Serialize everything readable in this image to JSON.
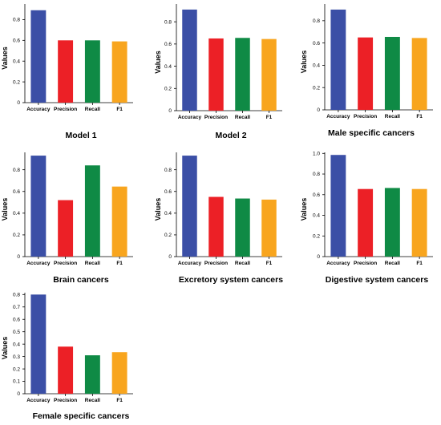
{
  "colors": {
    "Accuracy": "#3b4fa6",
    "Precision": "#ec2026",
    "Recall": "#0f8a45",
    "F1": "#f8a51e"
  },
  "chart_data": [
    {
      "type": "bar",
      "title": "Model 1",
      "ylabel": "Values",
      "categories": [
        "Accuracy",
        "Precision",
        "Recall",
        "F1"
      ],
      "values": [
        0.89,
        0.6,
        0.6,
        0.59
      ],
      "yticks": [
        "0",
        "0.2",
        "0.4",
        "0.6",
        "0.8"
      ],
      "ylim": [
        0,
        0.95
      ]
    },
    {
      "type": "bar",
      "title": "Model 2",
      "ylabel": "Values",
      "categories": [
        "Accuracy",
        "Precision",
        "Recall",
        "F1"
      ],
      "values": [
        0.91,
        0.65,
        0.655,
        0.645
      ],
      "yticks": [
        "0",
        "0.2",
        "0.4",
        "0.6",
        "0.8"
      ],
      "ylim": [
        0,
        0.96
      ]
    },
    {
      "type": "bar",
      "title": "Male specific cancers",
      "ylabel": "Values",
      "categories": [
        "Accuracy",
        "Precision",
        "Recall",
        "F1"
      ],
      "values": [
        0.9,
        0.65,
        0.655,
        0.645
      ],
      "yticks": [
        "0",
        "0.2",
        "0.4",
        "0.6",
        "0.8"
      ],
      "ylim": [
        0,
        0.95
      ]
    },
    {
      "type": "bar",
      "title": "Brain cancers",
      "ylabel": "Values",
      "categories": [
        "Accuracy",
        "Precision",
        "Recall",
        "F1"
      ],
      "values": [
        0.93,
        0.52,
        0.84,
        0.645
      ],
      "yticks": [
        "0",
        "0.2",
        "0.4",
        "0.6",
        "0.8"
      ],
      "ylim": [
        0,
        0.96
      ]
    },
    {
      "type": "bar",
      "title": "Excretory system cancers",
      "ylabel": "Values",
      "categories": [
        "Accuracy",
        "Precision",
        "Recall",
        "F1"
      ],
      "values": [
        0.93,
        0.55,
        0.535,
        0.525
      ],
      "yticks": [
        "0",
        "0.2",
        "0.4",
        "0.6",
        "0.8"
      ],
      "ylim": [
        0,
        0.96
      ]
    },
    {
      "type": "bar",
      "title": "Digestive system cancers",
      "ylabel": "Values",
      "categories": [
        "Accuracy",
        "Precision",
        "Recall",
        "F1"
      ],
      "values": [
        0.985,
        0.655,
        0.665,
        0.655
      ],
      "yticks": [
        "0",
        "0.2",
        "0.4",
        "0.6",
        "0.8",
        "1.0"
      ],
      "ylim": [
        0,
        1.01
      ]
    },
    {
      "type": "bar",
      "title": "Female specific cancers",
      "ylabel": "Values",
      "categories": [
        "Accuracy",
        "Precision",
        "Recall",
        "F1"
      ],
      "values": [
        0.8,
        0.38,
        0.31,
        0.335
      ],
      "yticks": [
        "0",
        "0.1",
        "0.2",
        "0.3",
        "0.4",
        "0.5",
        "0.6",
        "0.7",
        "0.8"
      ],
      "ylim": [
        0,
        0.815
      ]
    }
  ]
}
